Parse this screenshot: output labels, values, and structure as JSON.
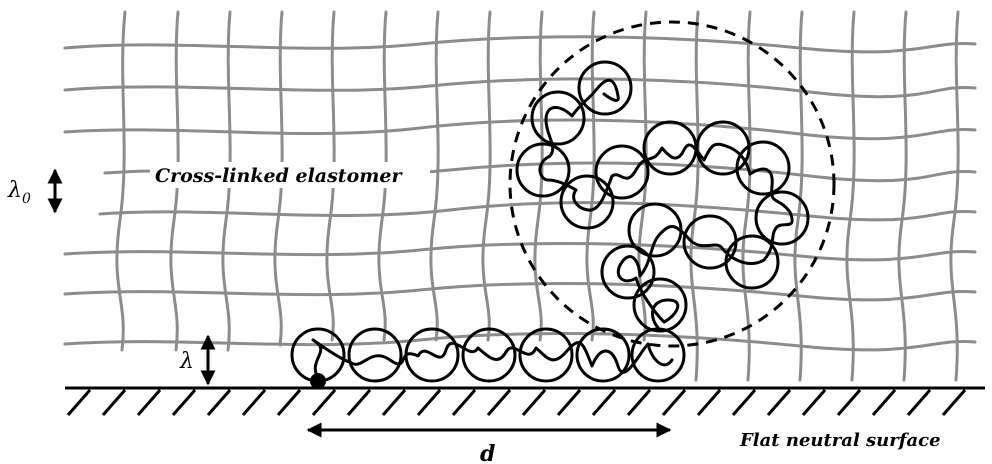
{
  "labels": {
    "elastomer": "Cross-linked elastomer",
    "surface": "Flat neutral surface",
    "lambda0": "λ",
    "lambda0_sub": "0",
    "lambda": "λ",
    "distance": "d"
  },
  "colors": {
    "mesh": "#8c8c8c",
    "ink": "#000000"
  }
}
